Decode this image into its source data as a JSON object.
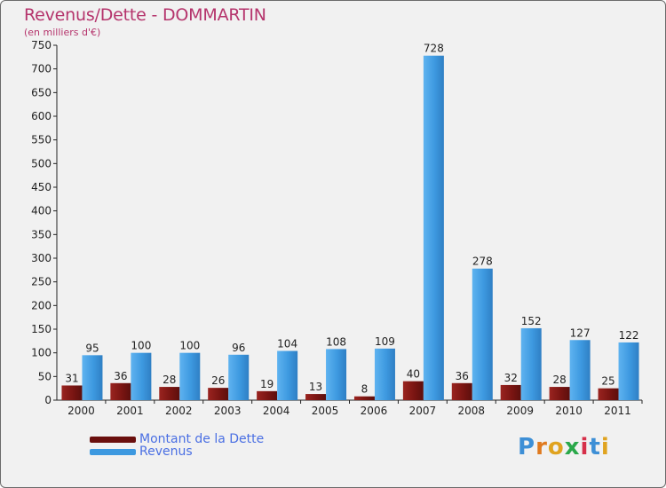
{
  "colors": {
    "dette": "#7a1512",
    "revenus": "#3d99e0",
    "title": "#b5346c",
    "legend_text": "#4a6fe3"
  },
  "header": {
    "title": "Revenus/Dette - DOMMARTIN",
    "subtitle": "(en milliers d'€)"
  },
  "legend": {
    "dette_label": "Montant de la Dette",
    "revenus_label": "Revenus"
  },
  "logo": {
    "letters": [
      "P",
      "r",
      "o",
      "x",
      "i",
      "t",
      "i"
    ]
  },
  "chart_data": {
    "type": "bar",
    "title": "Revenus/Dette - DOMMARTIN",
    "ylabel": "(en milliers d'€)",
    "categories": [
      "2000",
      "2001",
      "2002",
      "2003",
      "2004",
      "2005",
      "2006",
      "2007",
      "2008",
      "2009",
      "2010",
      "2011"
    ],
    "series": [
      {
        "name": "Montant de la Dette",
        "values": [
          31,
          36,
          28,
          26,
          19,
          13,
          8,
          40,
          36,
          32,
          28,
          25
        ]
      },
      {
        "name": "Revenus",
        "values": [
          95,
          100,
          100,
          96,
          104,
          108,
          109,
          728,
          278,
          152,
          127,
          122
        ]
      }
    ],
    "ylim": [
      0,
      750
    ],
    "yticks": [
      0,
      50,
      100,
      150,
      200,
      250,
      300,
      350,
      400,
      450,
      500,
      550,
      600,
      650,
      700,
      750
    ],
    "grid": false,
    "legend": "bottom-left"
  }
}
